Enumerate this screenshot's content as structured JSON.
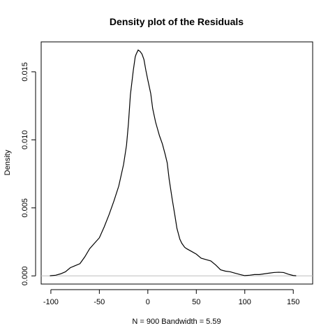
{
  "chart_data": {
    "type": "line",
    "title": "Density plot of the Residuals",
    "xlabel": "N = 900   Bandwidth = 5.59",
    "ylabel": "Density",
    "xlim": [
      -110,
      170
    ],
    "ylim": [
      -0.0006,
      0.0172
    ],
    "x_ticks": [
      -100,
      -50,
      0,
      50,
      100,
      150
    ],
    "x_tick_labels": [
      "-100",
      "-50",
      "0",
      "50",
      "100",
      "150"
    ],
    "y_ticks": [
      0.0,
      0.005,
      0.01,
      0.015
    ],
    "y_tick_labels": [
      "0.000",
      "0.005",
      "0.010",
      "0.015"
    ],
    "baseline": 0,
    "baseline_color": "#bebebe",
    "line_color": "#000000",
    "grid": false,
    "series": [
      {
        "x": [
          -101,
          -95,
          -90,
          -85,
          -80,
          -75,
          -70,
          -65,
          -60,
          -55,
          -50,
          -45,
          -40,
          -35,
          -30,
          -25,
          -22,
          -20,
          -18,
          -15,
          -13,
          -12,
          -10,
          -8,
          -6,
          -4,
          -2,
          0,
          3,
          5,
          8,
          10,
          12,
          15,
          18,
          20,
          22,
          25,
          28,
          30,
          33,
          35,
          38,
          40,
          45,
          50,
          55,
          60,
          65,
          70,
          75,
          80,
          85,
          90,
          95,
          100,
          105,
          110,
          115,
          120,
          125,
          130,
          135,
          140,
          145,
          150,
          153
        ],
        "y": [
          1e-05,
          5e-05,
          0.00015,
          0.0003,
          0.0006,
          0.00075,
          0.0009,
          0.0014,
          0.002,
          0.0024,
          0.0028,
          0.0036,
          0.0045,
          0.0055,
          0.0066,
          0.0082,
          0.0096,
          0.0112,
          0.0133,
          0.0151,
          0.0161,
          0.0163,
          0.0166,
          0.0165,
          0.0163,
          0.0159,
          0.0151,
          0.0144,
          0.0134,
          0.0123,
          0.0113,
          0.0108,
          0.0103,
          0.0097,
          0.0089,
          0.0083,
          0.0071,
          0.0057,
          0.0044,
          0.0035,
          0.0027,
          0.0024,
          0.0021,
          0.002,
          0.0018,
          0.0016,
          0.0013,
          0.0012,
          0.0011,
          0.0008,
          0.00045,
          0.00035,
          0.0003,
          0.0002,
          0.0001,
          2e-05,
          5e-05,
          0.0001,
          0.0001,
          0.00015,
          0.0002,
          0.00025,
          0.00027,
          0.00025,
          0.00012,
          3e-05,
          1e-05
        ]
      }
    ]
  }
}
